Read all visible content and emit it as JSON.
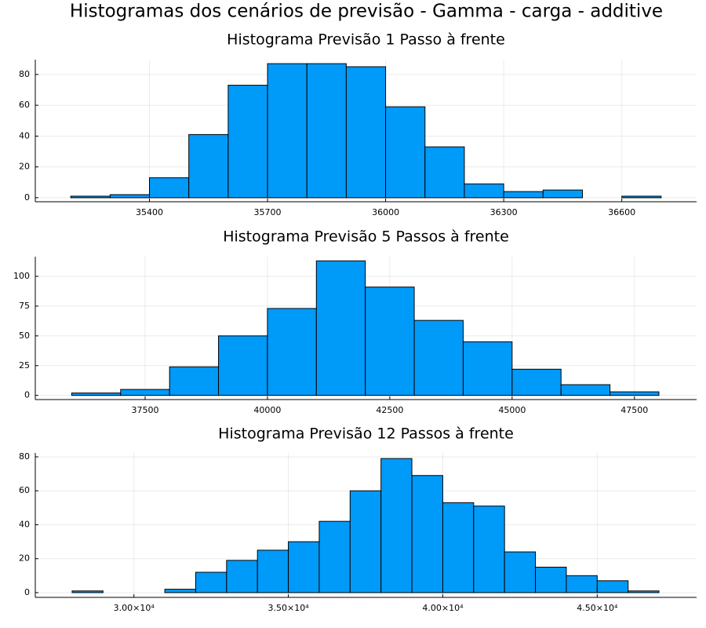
{
  "title": "Histogramas dos cenários de previsão - Gamma - carga - additive",
  "chart_data": [
    {
      "type": "histogram",
      "title": "Histograma Previsão 1 Passo à frente",
      "color": "#009af9",
      "grid": true,
      "bins": [
        35200,
        35300,
        35400,
        35500,
        35600,
        35700,
        35800,
        35900,
        36000,
        36100,
        36200,
        36300,
        36400,
        36500,
        36600,
        36700
      ],
      "values": [
        1,
        2,
        13,
        41,
        73,
        87,
        87,
        85,
        59,
        33,
        9,
        4,
        5,
        0,
        1
      ],
      "xlim": [
        35110,
        36790
      ],
      "xticks": [
        35400,
        35700,
        36000,
        36300,
        36600
      ],
      "ylim": [
        -2.6,
        89.6
      ],
      "yticks": [
        0,
        20,
        40,
        60,
        80
      ]
    },
    {
      "type": "histogram",
      "title": "Histograma Previsão 5 Passos à frente",
      "color": "#009af9",
      "grid": true,
      "bins": [
        36000,
        37000,
        38000,
        39000,
        40000,
        41000,
        42000,
        43000,
        44000,
        45000,
        46000,
        47000,
        48000
      ],
      "values": [
        2,
        5,
        24,
        50,
        73,
        113,
        91,
        63,
        45,
        22,
        9,
        3
      ],
      "xlim": [
        35256,
        48770
      ],
      "xticks": [
        37500,
        40000,
        42500,
        45000,
        47500
      ],
      "ylim": [
        -3.5,
        116.5
      ],
      "yticks": [
        0,
        25,
        50,
        75,
        100
      ]
    },
    {
      "type": "histogram",
      "title": "Histograma Previsão 12 Passos à frente",
      "color": "#009af9",
      "grid": true,
      "bins": [
        28000,
        29000,
        30000,
        31000,
        32000,
        33000,
        34000,
        35000,
        36000,
        37000,
        38000,
        39000,
        40000,
        41000,
        42000,
        43000,
        44000,
        45000,
        46000,
        47000
      ],
      "values": [
        1,
        0,
        0,
        2,
        12,
        19,
        25,
        30,
        42,
        60,
        79,
        69,
        53,
        51,
        24,
        15,
        10,
        7,
        1
      ],
      "xlim": [
        26807,
        48218
      ],
      "xticks": [
        {
          "value": 30000,
          "label": "3.00×10⁴"
        },
        {
          "value": 35000,
          "label": "3.50×10⁴"
        },
        {
          "value": 40000,
          "label": "4.00×10⁴"
        },
        {
          "value": 45000,
          "label": "4.50×10⁴"
        }
      ],
      "ylim": [
        -2.8,
        82.3
      ],
      "yticks": [
        0,
        20,
        40,
        60,
        80
      ]
    }
  ]
}
